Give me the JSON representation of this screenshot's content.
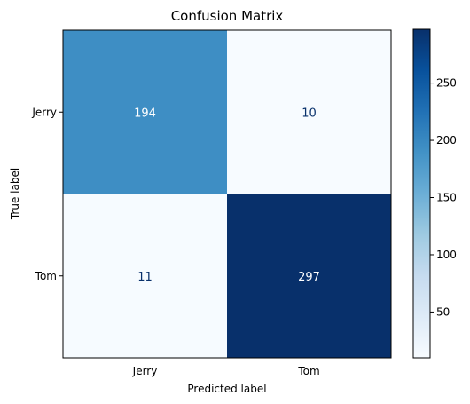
{
  "chart_data": {
    "type": "heatmap",
    "title": "Confusion Matrix",
    "xlabel": "Predicted label",
    "ylabel": "True label",
    "x_categories": [
      "Jerry",
      "Tom"
    ],
    "y_categories": [
      "Jerry",
      "Tom"
    ],
    "values": [
      [
        194,
        10
      ],
      [
        11,
        297
      ]
    ],
    "colormap": "Blues",
    "colorbar": {
      "range": [
        10,
        297
      ],
      "ticks": [
        50,
        100,
        150,
        200,
        250
      ],
      "tick_labels": [
        "50",
        "100",
        "150",
        "200",
        "250"
      ]
    },
    "colors": {
      "cmap_low": "#f7fbff",
      "cmap_high": "#08306b",
      "text_on_light": "#08306b",
      "text_on_dark": "#ffffff"
    },
    "grid": false,
    "legend": "colorbar-right"
  }
}
